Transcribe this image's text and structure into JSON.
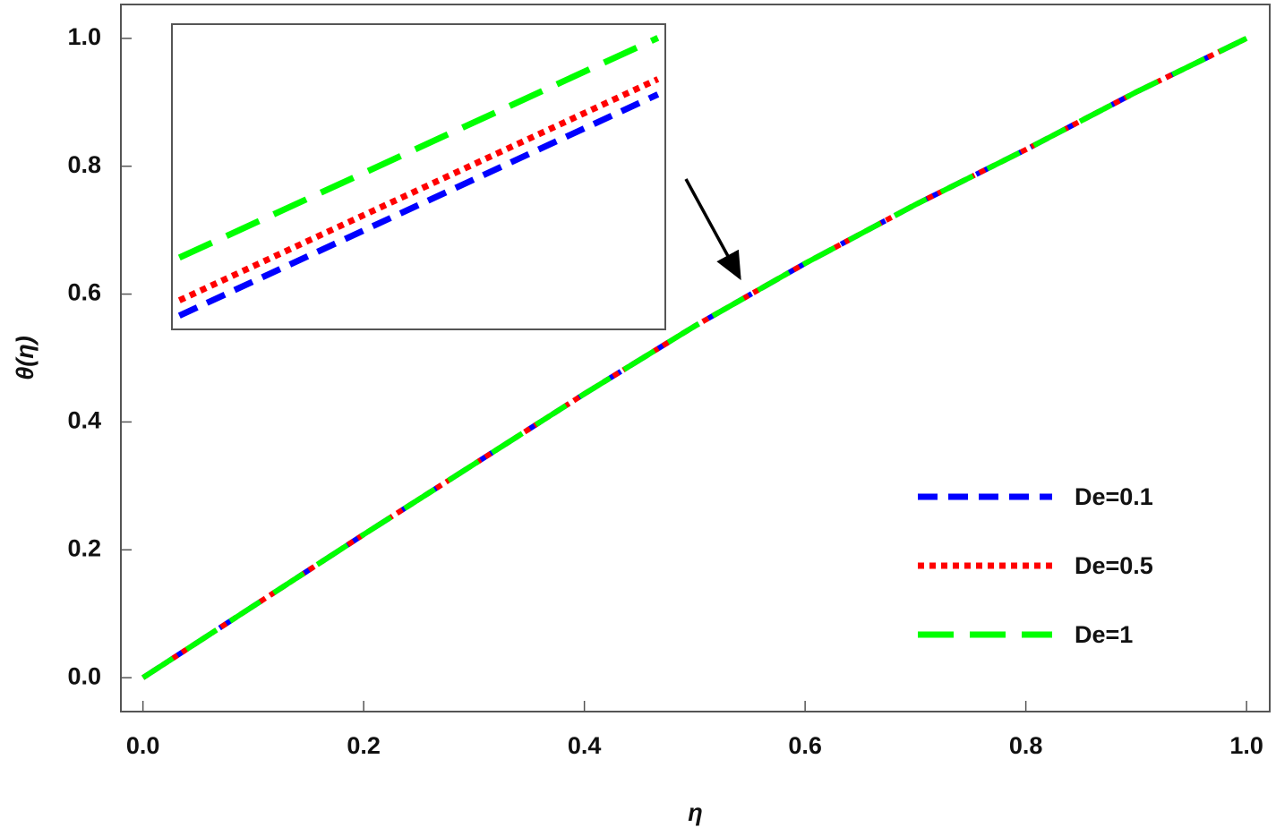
{
  "chart_data": [
    {
      "type": "line",
      "xlabel": "η",
      "ylabel": "θ(η)",
      "x": [
        0,
        0.1,
        0.2,
        0.3,
        0.4,
        0.5,
        0.6,
        0.7,
        0.8,
        0.9,
        1.0
      ],
      "series": [
        {
          "name": "De=0.1",
          "color": "#0000ff",
          "dash": "dashed",
          "values": [
            0,
            0.112,
            0.224,
            0.334,
            0.444,
            0.55,
            0.648,
            0.74,
            0.826,
            0.916,
            1.0
          ]
        },
        {
          "name": "De=0.5",
          "color": "#ff0000",
          "dash": "dotted",
          "values": [
            0,
            0.112,
            0.224,
            0.334,
            0.444,
            0.55,
            0.648,
            0.74,
            0.826,
            0.916,
            1.0
          ]
        },
        {
          "name": "De=1",
          "color": "#00ff00",
          "dash": "long-dashed",
          "values": [
            0,
            0.112,
            0.224,
            0.334,
            0.444,
            0.55,
            0.648,
            0.74,
            0.826,
            0.916,
            1.0
          ]
        }
      ],
      "xlim": [
        -0.02,
        1.021
      ],
      "ylim": [
        -0.053,
        1.053
      ],
      "xticks": [
        {
          "value": 0,
          "label": "0.0"
        },
        0.2,
        0.4,
        0.6,
        0.8,
        {
          "value": 1,
          "label": "1.0"
        }
      ],
      "yticks": [
        {
          "value": 0,
          "label": "0.0"
        },
        0.2,
        0.4,
        0.6,
        0.8,
        {
          "value": 1,
          "label": "1.0"
        }
      ],
      "legend": "lower-right"
    },
    {
      "type": "line",
      "x": [
        0.5403,
        0.5597
      ],
      "series": [
        {
          "name": "De=0.1",
          "color": "#0000ff",
          "dash": "dashed",
          "values": [
            0.5809,
            0.5954
          ]
        },
        {
          "name": "De=0.5",
          "color": "#ff0000",
          "dash": "dotted",
          "values": [
            0.5819,
            0.5964
          ]
        },
        {
          "name": "De=1",
          "color": "#00ff00",
          "dash": "long-dashed",
          "values": [
            0.5847,
            0.5991
          ]
        }
      ],
      "xlim": [
        0.54,
        0.56
      ],
      "ylim": [
        0.58,
        0.6
      ]
    }
  ]
}
